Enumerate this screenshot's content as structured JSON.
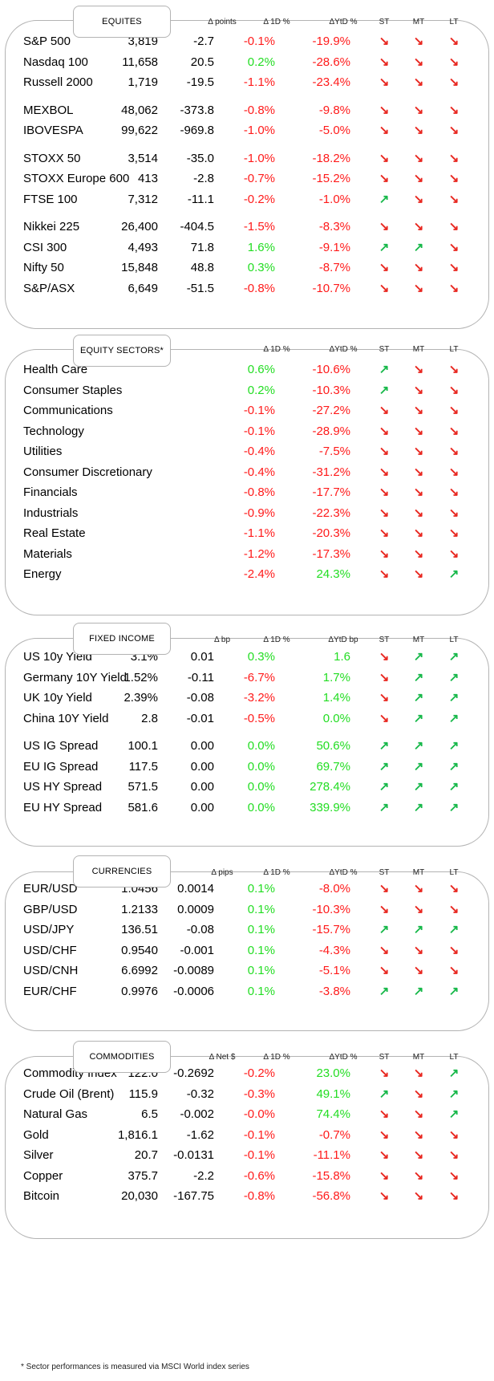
{
  "colors": {
    "negative": "#ff1a1a",
    "positive": "#22dd22",
    "arrow_down": "#e8261f",
    "arrow_up": "#17b84a",
    "border": "#b3b3b3"
  },
  "icons": {
    "down": "arrow-down-right-icon",
    "up": "arrow-up-right-icon"
  },
  "sections": [
    {
      "id": "equities",
      "title": "EQUITES",
      "headers": {
        "v2": "Δ points",
        "v3": "Δ 1D %",
        "v4": "ΔYtD %",
        "st": "ST",
        "mt": "MT",
        "lt": "LT"
      },
      "groups": [
        [
          {
            "name": "S&P 500",
            "v1": "3,819",
            "v2": "-2.7",
            "v3": "-0.1%",
            "v4": "-19.9%",
            "st": "down",
            "mt": "down",
            "lt": "down"
          },
          {
            "name": "Nasdaq 100",
            "v1": "11,658",
            "v2": "20.5",
            "v3": "0.2%",
            "v4": "-28.6%",
            "st": "down",
            "mt": "down",
            "lt": "down"
          },
          {
            "name": "Russell 2000",
            "v1": "1,719",
            "v2": "-19.5",
            "v3": "-1.1%",
            "v4": "-23.4%",
            "st": "down",
            "mt": "down",
            "lt": "down"
          }
        ],
        [
          {
            "name": "MEXBOL",
            "v1": "48,062",
            "v2": "-373.8",
            "v3": "-0.8%",
            "v4": "-9.8%",
            "st": "down",
            "mt": "down",
            "lt": "down"
          },
          {
            "name": "IBOVESPA",
            "v1": "99,622",
            "v2": "-969.8",
            "v3": "-1.0%",
            "v4": "-5.0%",
            "st": "down",
            "mt": "down",
            "lt": "down"
          }
        ],
        [
          {
            "name": "STOXX 50",
            "v1": "3,514",
            "v2": "-35.0",
            "v3": "-1.0%",
            "v4": "-18.2%",
            "st": "down",
            "mt": "down",
            "lt": "down"
          },
          {
            "name": "STOXX Europe 600",
            "v1": "413",
            "v2": "-2.8",
            "v3": "-0.7%",
            "v4": "-15.2%",
            "st": "down",
            "mt": "down",
            "lt": "down"
          },
          {
            "name": "FTSE 100",
            "v1": "7,312",
            "v2": "-11.1",
            "v3": "-0.2%",
            "v4": "-1.0%",
            "st": "up",
            "mt": "down",
            "lt": "down"
          }
        ],
        [
          {
            "name": "Nikkei 225",
            "v1": "26,400",
            "v2": "-404.5",
            "v3": "-1.5%",
            "v4": "-8.3%",
            "st": "down",
            "mt": "down",
            "lt": "down"
          },
          {
            "name": "CSI 300",
            "v1": "4,493",
            "v2": "71.8",
            "v3": "1.6%",
            "v4": "-9.1%",
            "st": "up",
            "mt": "up",
            "lt": "down"
          },
          {
            "name": "Nifty  50",
            "v1": "15,848",
            "v2": "48.8",
            "v3": "0.3%",
            "v4": "-8.7%",
            "st": "down",
            "mt": "down",
            "lt": "down"
          },
          {
            "name": "S&P/ASX",
            "v1": "6,649",
            "v2": "-51.5",
            "v3": "-0.8%",
            "v4": "-10.7%",
            "st": "down",
            "mt": "down",
            "lt": "down"
          }
        ]
      ]
    },
    {
      "id": "sectors",
      "title": "EQUITY  SECTORS*",
      "headers": {
        "v2": "",
        "v3": "Δ 1D %",
        "v4": "ΔYtD %",
        "st": "ST",
        "mt": "MT",
        "lt": "LT"
      },
      "groups": [
        [
          {
            "name": "Health Care",
            "v1": "",
            "v2": "",
            "v3": "0.6%",
            "v4": "-10.6%",
            "st": "up",
            "mt": "down",
            "lt": "down"
          },
          {
            "name": "Consumer Staples",
            "v1": "",
            "v2": "",
            "v3": "0.2%",
            "v4": "-10.3%",
            "st": "up",
            "mt": "down",
            "lt": "down"
          },
          {
            "name": "Communications",
            "v1": "",
            "v2": "",
            "v3": "-0.1%",
            "v4": "-27.2%",
            "st": "down",
            "mt": "down",
            "lt": "down"
          },
          {
            "name": "Technology",
            "v1": "",
            "v2": "",
            "v3": "-0.1%",
            "v4": "-28.9%",
            "st": "down",
            "mt": "down",
            "lt": "down"
          },
          {
            "name": "Utilities",
            "v1": "",
            "v2": "",
            "v3": "-0.4%",
            "v4": "-7.5%",
            "st": "down",
            "mt": "down",
            "lt": "down"
          },
          {
            "name": "Consumer Discretionary",
            "v1": "",
            "v2": "",
            "v3": "-0.4%",
            "v4": "-31.2%",
            "st": "down",
            "mt": "down",
            "lt": "down"
          },
          {
            "name": "Financials",
            "v1": "",
            "v2": "",
            "v3": "-0.8%",
            "v4": "-17.7%",
            "st": "down",
            "mt": "down",
            "lt": "down"
          },
          {
            "name": "Industrials",
            "v1": "",
            "v2": "",
            "v3": "-0.9%",
            "v4": "-22.3%",
            "st": "down",
            "mt": "down",
            "lt": "down"
          },
          {
            "name": "Real Estate",
            "v1": "",
            "v2": "",
            "v3": "-1.1%",
            "v4": "-20.3%",
            "st": "down",
            "mt": "down",
            "lt": "down"
          },
          {
            "name": "Materials",
            "v1": "",
            "v2": "",
            "v3": "-1.2%",
            "v4": "-17.3%",
            "st": "down",
            "mt": "down",
            "lt": "down"
          },
          {
            "name": "Energy",
            "v1": "",
            "v2": "",
            "v3": "-2.4%",
            "v4": "24.3%",
            "st": "down",
            "mt": "down",
            "lt": "up"
          }
        ]
      ]
    },
    {
      "id": "fixed-income",
      "title": "FIXED  INCOME",
      "headers": {
        "v2": "Δ bp",
        "v3": "Δ 1D %",
        "v4": "ΔYtD bp",
        "st": "ST",
        "mt": "MT",
        "lt": "LT"
      },
      "groups": [
        [
          {
            "name": "US 10y Yield",
            "v1": "3.1%",
            "v2": "0.01",
            "v3": "0.3%",
            "v4": "1.6",
            "st": "down",
            "mt": "up",
            "lt": "up"
          },
          {
            "name": "Germany 10Y Yield",
            "v1": "1.52%",
            "v2": "-0.11",
            "v3": "-6.7%",
            "v4": "1.7%",
            "st": "down",
            "mt": "up",
            "lt": "up"
          },
          {
            "name": "UK 10y Yield",
            "v1": "2.39%",
            "v2": "-0.08",
            "v3": "-3.2%",
            "v4": "1.4%",
            "st": "down",
            "mt": "up",
            "lt": "up"
          },
          {
            "name": "China 10Y Yield",
            "v1": "2.8",
            "v2": "-0.01",
            "v3": "-0.5%",
            "v4": "0.0%",
            "st": "down",
            "mt": "up",
            "lt": "up"
          }
        ],
        [
          {
            "name": "US IG Spread",
            "v1": "100.1",
            "v2": "0.00",
            "v3": "0.0%",
            "v4": "50.6%",
            "st": "up",
            "mt": "up",
            "lt": "up"
          },
          {
            "name": "EU IG Spread",
            "v1": "117.5",
            "v2": "0.00",
            "v3": "0.0%",
            "v4": "69.7%",
            "st": "up",
            "mt": "up",
            "lt": "up"
          },
          {
            "name": "US HY Spread",
            "v1": "571.5",
            "v2": "0.00",
            "v3": "0.0%",
            "v4": "278.4%",
            "st": "up",
            "mt": "up",
            "lt": "up"
          },
          {
            "name": "EU HY Spread",
            "v1": "581.6",
            "v2": "0.00",
            "v3": "0.0%",
            "v4": "339.9%",
            "st": "up",
            "mt": "up",
            "lt": "up"
          }
        ]
      ]
    },
    {
      "id": "currencies",
      "title": "CURRENCIES",
      "headers": {
        "v2": "Δ pips",
        "v3": "Δ 1D %",
        "v4": "ΔYtD %",
        "st": "ST",
        "mt": "MT",
        "lt": "LT"
      },
      "groups": [
        [
          {
            "name": "EUR/USD",
            "v1": "1.0456",
            "v2": "0.0014",
            "v3": "0.1%",
            "v4": "-8.0%",
            "st": "down",
            "mt": "down",
            "lt": "down"
          },
          {
            "name": "GBP/USD",
            "v1": "1.2133",
            "v2": "0.0009",
            "v3": "0.1%",
            "v4": "-10.3%",
            "st": "down",
            "mt": "down",
            "lt": "down"
          },
          {
            "name": "USD/JPY",
            "v1": "136.51",
            "v2": "-0.08",
            "v3": "0.1%",
            "v4": "-15.7%",
            "st": "up",
            "mt": "up",
            "lt": "up"
          },
          {
            "name": "USD/CHF",
            "v1": "0.9540",
            "v2": "-0.001",
            "v3": "0.1%",
            "v4": "-4.3%",
            "st": "down",
            "mt": "down",
            "lt": "down"
          },
          {
            "name": "USD/CNH",
            "v1": "6.6992",
            "v2": "-0.0089",
            "v3": "0.1%",
            "v4": "-5.1%",
            "st": "down",
            "mt": "down",
            "lt": "down"
          },
          {
            "name": "EUR/CHF",
            "v1": "0.9976",
            "v2": "-0.0006",
            "v3": "0.1%",
            "v4": "-3.8%",
            "st": "up",
            "mt": "up",
            "lt": "up"
          }
        ]
      ]
    },
    {
      "id": "commodities",
      "title": "COMMODITIES",
      "headers": {
        "v2": "Δ Net $",
        "v3": "Δ 1D %",
        "v4": "ΔYtD %",
        "st": "ST",
        "mt": "MT",
        "lt": "LT"
      },
      "groups": [
        [
          {
            "name": "Commodity Index",
            "v1": "122.0",
            "v2": "-0.2692",
            "v3": "-0.2%",
            "v4": "23.0%",
            "st": "down",
            "mt": "down",
            "lt": "up"
          },
          {
            "name": "Crude Oil (Brent)",
            "v1": "115.9",
            "v2": "-0.32",
            "v3": "-0.3%",
            "v4": "49.1%",
            "st": "up",
            "mt": "down",
            "lt": "up"
          },
          {
            "name": "Natural Gas",
            "v1": "6.5",
            "v2": "-0.002",
            "v3": "-0.0%",
            "v4": "74.4%",
            "st": "down",
            "mt": "down",
            "lt": "up"
          },
          {
            "name": "Gold",
            "v1": "1,816.1",
            "v2": "-1.62",
            "v3": "-0.1%",
            "v4": "-0.7%",
            "st": "down",
            "mt": "down",
            "lt": "down"
          },
          {
            "name": "Silver",
            "v1": "20.7",
            "v2": "-0.0131",
            "v3": "-0.1%",
            "v4": "-11.1%",
            "st": "down",
            "mt": "down",
            "lt": "down"
          },
          {
            "name": "Copper",
            "v1": "375.7",
            "v2": "-2.2",
            "v3": "-0.6%",
            "v4": "-15.8%",
            "st": "down",
            "mt": "down",
            "lt": "down"
          },
          {
            "name": "Bitcoin",
            "v1": "20,030",
            "v2": "-167.75",
            "v3": "-0.8%",
            "v4": "-56.8%",
            "st": "down",
            "mt": "down",
            "lt": "down"
          }
        ]
      ]
    }
  ],
  "footnote": "* Sector performances is measured via MSCI World index series"
}
